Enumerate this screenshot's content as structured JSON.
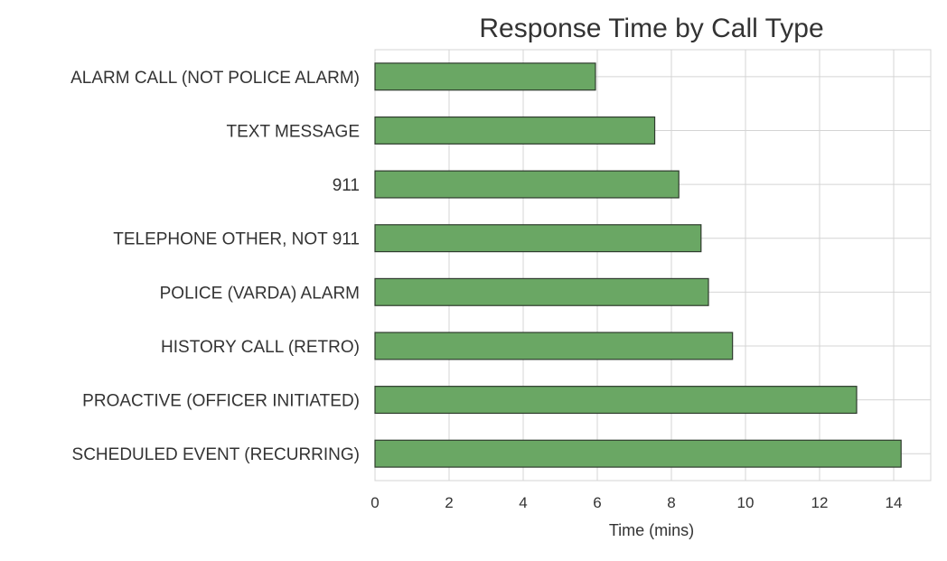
{
  "chart_data": {
    "type": "bar",
    "orientation": "horizontal",
    "title": "Response Time by Call Type",
    "xlabel": "Time (mins)",
    "ylabel": "",
    "categories": [
      "ALARM CALL (NOT POLICE ALARM)",
      "TEXT MESSAGE",
      "911",
      "TELEPHONE OTHER, NOT 911",
      "POLICE (VARDA) ALARM",
      "HISTORY CALL (RETRO)",
      "PROACTIVE (OFFICER INITIATED)",
      "SCHEDULED EVENT (RECURRING)"
    ],
    "values": [
      5.95,
      7.55,
      8.2,
      8.8,
      9.0,
      9.65,
      13.0,
      14.2
    ],
    "xlim": [
      0,
      15
    ],
    "xticks": [
      0,
      2,
      4,
      6,
      8,
      10,
      12,
      14
    ],
    "grid": true,
    "colors": {
      "bar_fill": "#6aa764",
      "bar_edge": "#2e3b2d",
      "grid": "#d4d4d4",
      "text": "#333333"
    }
  }
}
